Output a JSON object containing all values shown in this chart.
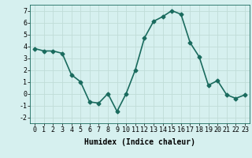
{
  "x": [
    0,
    1,
    2,
    3,
    4,
    5,
    6,
    7,
    8,
    9,
    10,
    11,
    12,
    13,
    14,
    15,
    16,
    17,
    18,
    19,
    20,
    21,
    22,
    23
  ],
  "y": [
    3.8,
    3.6,
    3.6,
    3.4,
    1.6,
    1.0,
    -0.7,
    -0.8,
    0.0,
    -1.5,
    0.0,
    2.0,
    4.7,
    6.1,
    6.5,
    7.0,
    6.7,
    4.3,
    3.1,
    0.7,
    1.1,
    -0.1,
    -0.4,
    -0.1
  ],
  "line_color": "#1a6b5e",
  "marker": "D",
  "marker_size": 2.5,
  "line_width": 1.2,
  "bg_color": "#d6f0ef",
  "grid_color": "#c0dcd8",
  "xlabel": "Humidex (Indice chaleur)",
  "xlabel_fontsize": 7,
  "ylim": [
    -2.5,
    7.5
  ],
  "xlim": [
    -0.5,
    23.5
  ],
  "yticks": [
    -2,
    -1,
    0,
    1,
    2,
    3,
    4,
    5,
    6,
    7
  ],
  "xticks": [
    0,
    1,
    2,
    3,
    4,
    5,
    6,
    7,
    8,
    9,
    10,
    11,
    12,
    13,
    14,
    15,
    16,
    17,
    18,
    19,
    20,
    21,
    22,
    23
  ],
  "tick_fontsize": 6
}
